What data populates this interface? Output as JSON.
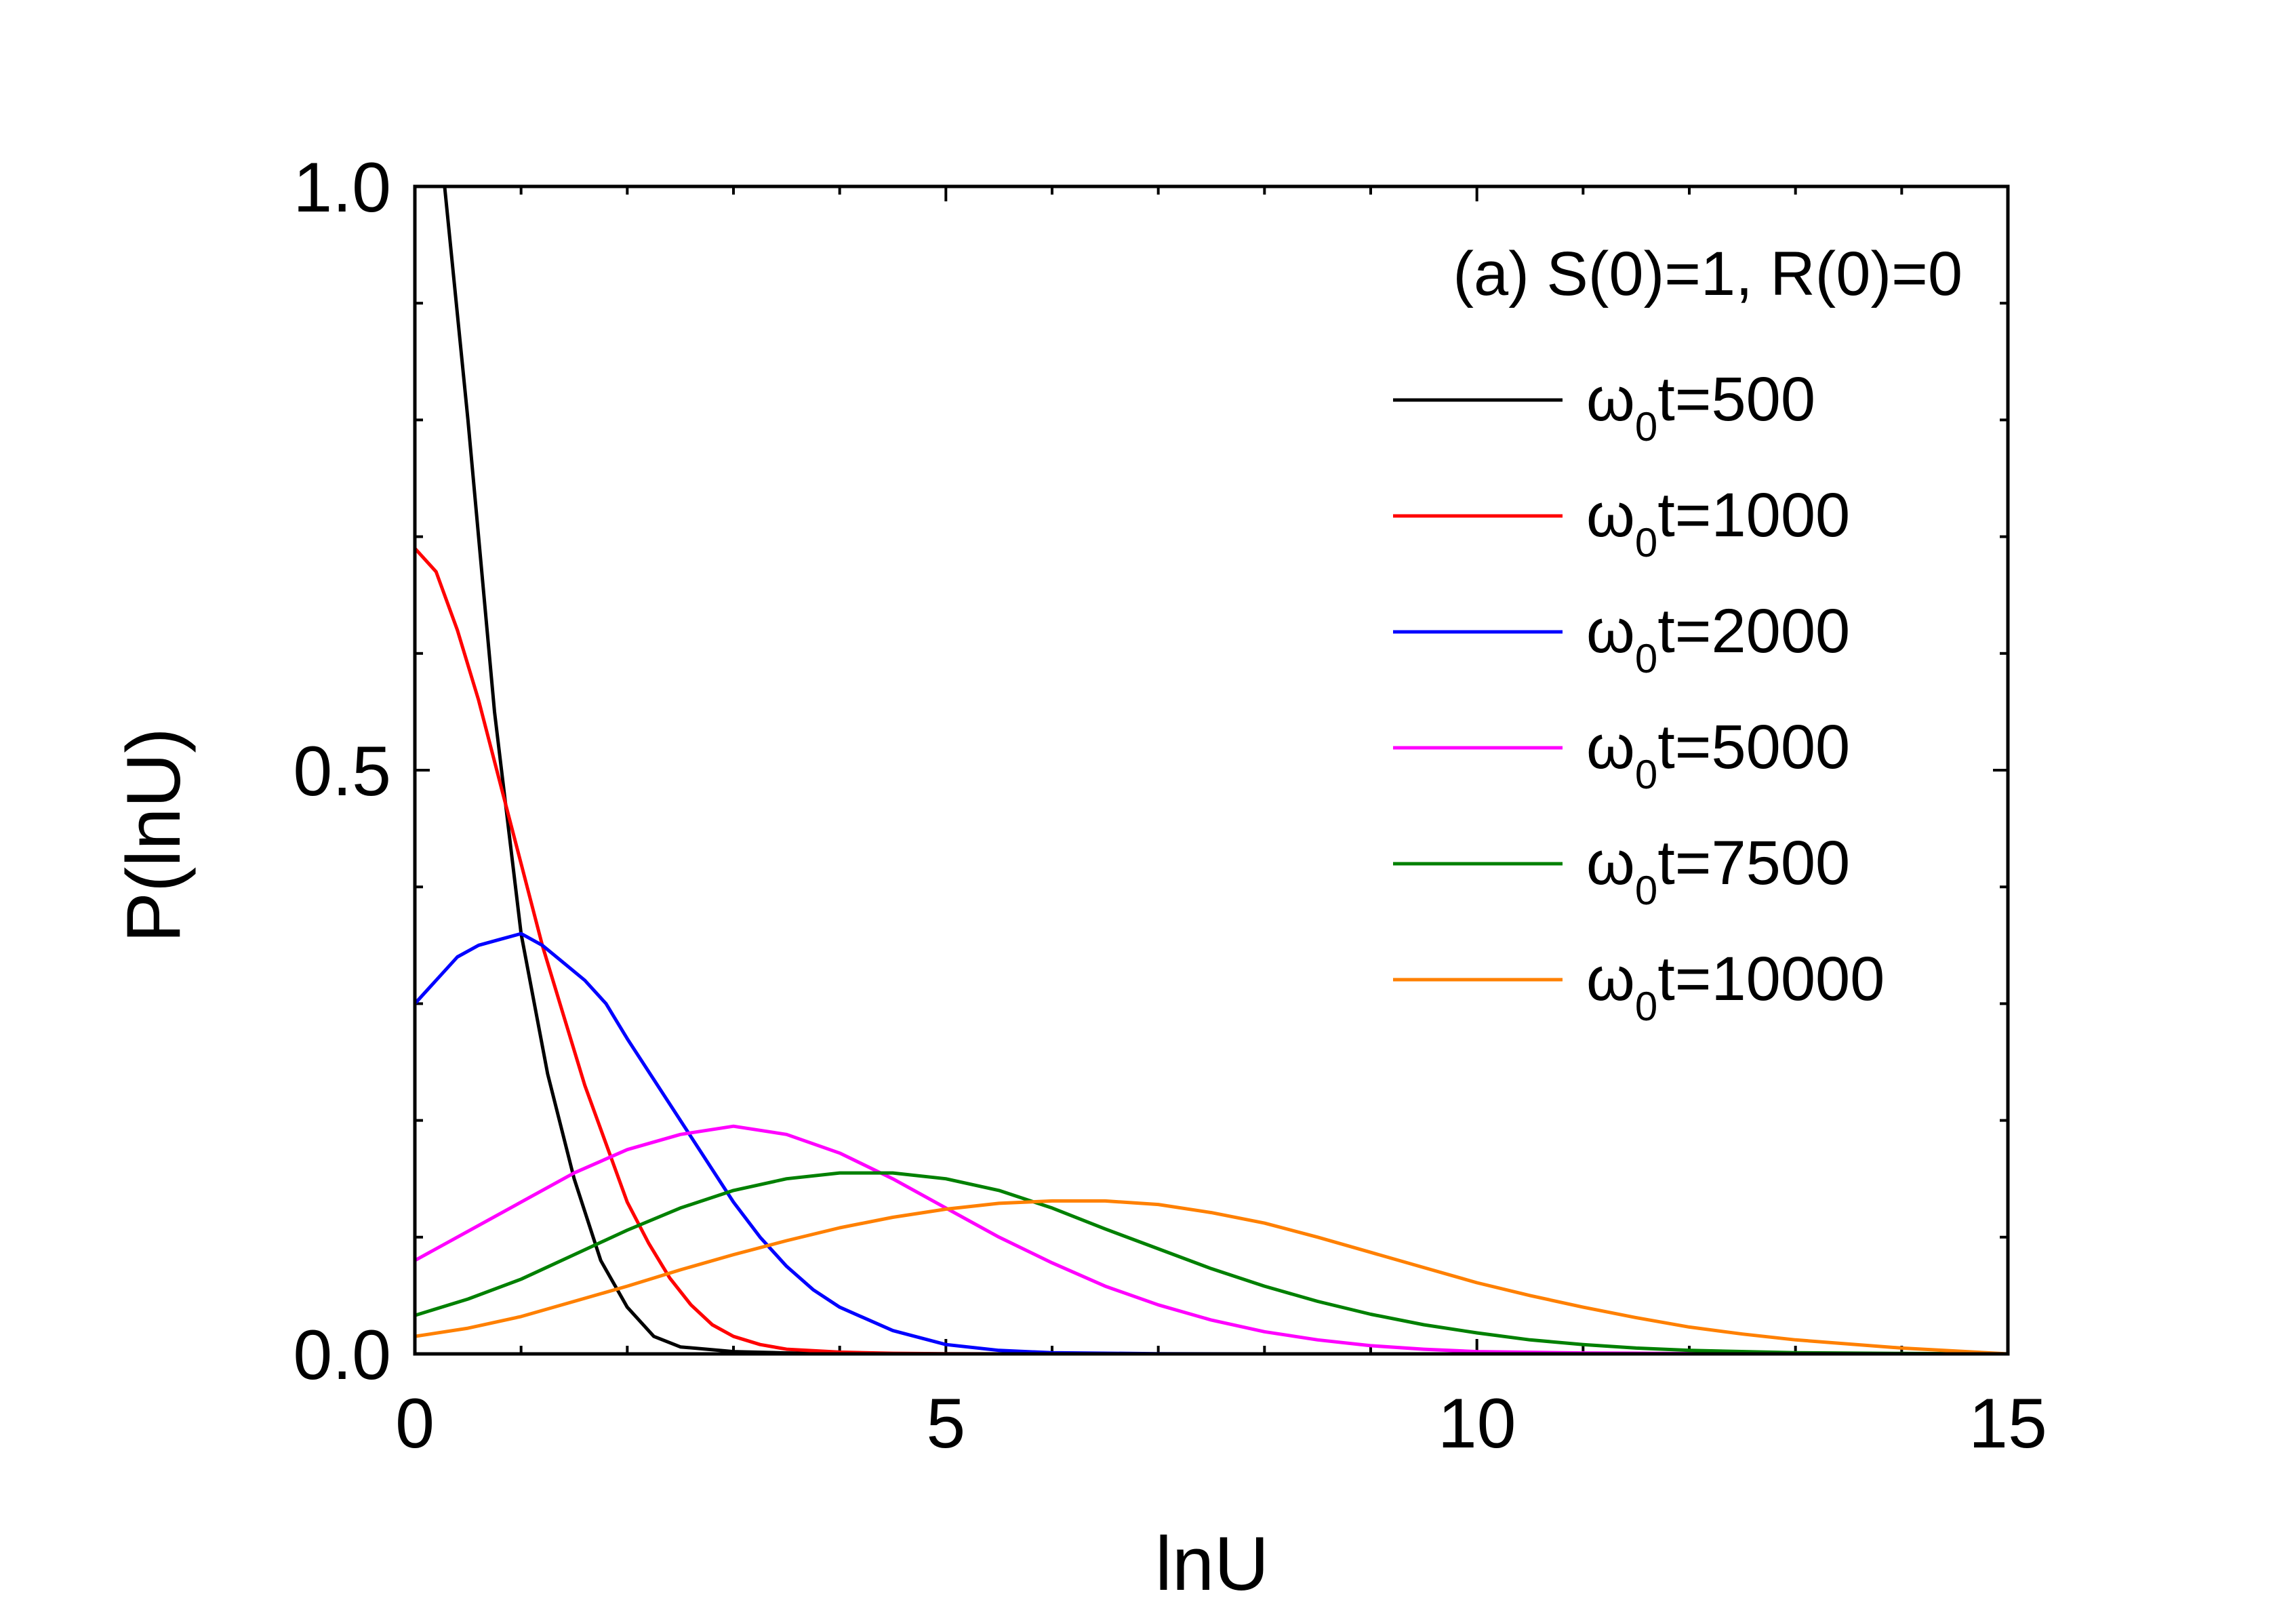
{
  "chart_data": {
    "type": "line",
    "title": "",
    "xlabel": "lnU",
    "ylabel": "P(lnU)",
    "xlim": [
      0,
      15
    ],
    "ylim": [
      0,
      1.0
    ],
    "x_ticks": [
      0,
      5,
      10,
      15
    ],
    "x_tick_labels": [
      "0",
      "5",
      "10",
      "15"
    ],
    "y_ticks": [
      0,
      0.5,
      1.0
    ],
    "y_tick_labels": [
      "0.0",
      "0.5",
      "1.0"
    ],
    "grid": false,
    "legend_position": "right",
    "annotation": "(a) S(0)=1, R(0)=0",
    "series": [
      {
        "name": "ω0t=500",
        "legend_main": "ω",
        "legend_sub": "0",
        "legend_rest": "t=500",
        "color": "#000000",
        "x": [
          0.28,
          0.5,
          0.75,
          1.0,
          1.25,
          1.5,
          1.75,
          2.0,
          2.25,
          2.5,
          3.0,
          3.5,
          4.0,
          5.0,
          7.0,
          10.0,
          15.0
        ],
        "y": [
          1.0,
          0.8,
          0.55,
          0.36,
          0.24,
          0.15,
          0.08,
          0.04,
          0.015,
          0.006,
          0.002,
          0.0008,
          0.0003,
          0.0,
          0.0,
          0.0,
          0.0
        ]
      },
      {
        "name": "ω0t=1000",
        "legend_main": "ω",
        "legend_sub": "0",
        "legend_rest": "t=1000",
        "color": "#ff0000",
        "x": [
          0,
          0.2,
          0.4,
          0.6,
          0.8,
          1.0,
          1.2,
          1.4,
          1.6,
          1.8,
          2.0,
          2.2,
          2.4,
          2.6,
          2.8,
          3.0,
          3.25,
          3.5,
          4.0,
          4.5,
          5.0,
          6.0,
          8.0,
          10.0,
          15.0
        ],
        "y": [
          0.69,
          0.67,
          0.62,
          0.56,
          0.49,
          0.42,
          0.35,
          0.29,
          0.23,
          0.18,
          0.13,
          0.095,
          0.065,
          0.042,
          0.025,
          0.015,
          0.008,
          0.004,
          0.0015,
          0.0005,
          0.0002,
          0.0,
          0.0,
          0.0,
          0.0
        ]
      },
      {
        "name": "ω0t=2000",
        "legend_main": "ω",
        "legend_sub": "0",
        "legend_rest": "t=2000",
        "color": "#0000ff",
        "x": [
          0,
          0.2,
          0.4,
          0.6,
          0.8,
          1.0,
          1.2,
          1.4,
          1.6,
          1.8,
          2.0,
          2.5,
          3.0,
          3.25,
          3.5,
          3.75,
          4.0,
          4.5,
          5.0,
          5.5,
          6.0,
          7.0,
          8.0,
          10.0,
          15.0
        ],
        "y": [
          0.3,
          0.32,
          0.34,
          0.35,
          0.355,
          0.36,
          0.35,
          0.335,
          0.32,
          0.3,
          0.27,
          0.2,
          0.13,
          0.1,
          0.075,
          0.055,
          0.04,
          0.02,
          0.008,
          0.003,
          0.001,
          0.0002,
          0.0,
          0.0,
          0.0
        ]
      },
      {
        "name": "ω0t=5000",
        "legend_main": "ω",
        "legend_sub": "0",
        "legend_rest": "t=5000",
        "color": "#ff00ff",
        "x": [
          0,
          0.5,
          1.0,
          1.5,
          2.0,
          2.5,
          3.0,
          3.5,
          4.0,
          4.5,
          5.0,
          5.5,
          6.0,
          6.5,
          7.0,
          7.5,
          8.0,
          8.5,
          9.0,
          9.5,
          10.0,
          11.0,
          12.0,
          13.0,
          14.0,
          15.0
        ],
        "y": [
          0.08,
          0.105,
          0.13,
          0.155,
          0.175,
          0.188,
          0.195,
          0.188,
          0.172,
          0.15,
          0.125,
          0.1,
          0.078,
          0.058,
          0.042,
          0.029,
          0.019,
          0.012,
          0.007,
          0.004,
          0.002,
          0.0008,
          0.0003,
          0.0001,
          0.0,
          0.0
        ]
      },
      {
        "name": "ω0t=7500",
        "legend_main": "ω",
        "legend_sub": "0",
        "legend_rest": "t=7500",
        "color": "#008000",
        "x": [
          0,
          0.5,
          1.0,
          1.5,
          2.0,
          2.5,
          3.0,
          3.5,
          4.0,
          4.5,
          5.0,
          5.5,
          6.0,
          6.5,
          7.0,
          7.5,
          8.0,
          8.5,
          9.0,
          9.5,
          10.0,
          10.5,
          11.0,
          11.5,
          12.0,
          13.0,
          14.0,
          15.0
        ],
        "y": [
          0.033,
          0.047,
          0.064,
          0.085,
          0.106,
          0.125,
          0.14,
          0.15,
          0.155,
          0.155,
          0.15,
          0.14,
          0.125,
          0.107,
          0.09,
          0.073,
          0.058,
          0.045,
          0.034,
          0.025,
          0.018,
          0.012,
          0.008,
          0.005,
          0.003,
          0.001,
          0.0004,
          0.0
        ]
      },
      {
        "name": "ω0t=10000",
        "legend_main": "ω",
        "legend_sub": "0",
        "legend_rest": "t=10000",
        "color": "#ff8000",
        "x": [
          0,
          0.5,
          1.0,
          1.5,
          2.0,
          2.5,
          3.0,
          3.5,
          4.0,
          4.5,
          5.0,
          5.5,
          6.0,
          6.5,
          7.0,
          7.5,
          8.0,
          8.5,
          9.0,
          9.5,
          10.0,
          10.5,
          11.0,
          11.5,
          12.0,
          12.5,
          13.0,
          14.0,
          15.0
        ],
        "y": [
          0.015,
          0.022,
          0.032,
          0.045,
          0.058,
          0.072,
          0.085,
          0.097,
          0.108,
          0.117,
          0.124,
          0.129,
          0.131,
          0.131,
          0.128,
          0.121,
          0.112,
          0.1,
          0.087,
          0.074,
          0.061,
          0.05,
          0.04,
          0.031,
          0.023,
          0.017,
          0.012,
          0.005,
          0.0
        ]
      }
    ]
  }
}
